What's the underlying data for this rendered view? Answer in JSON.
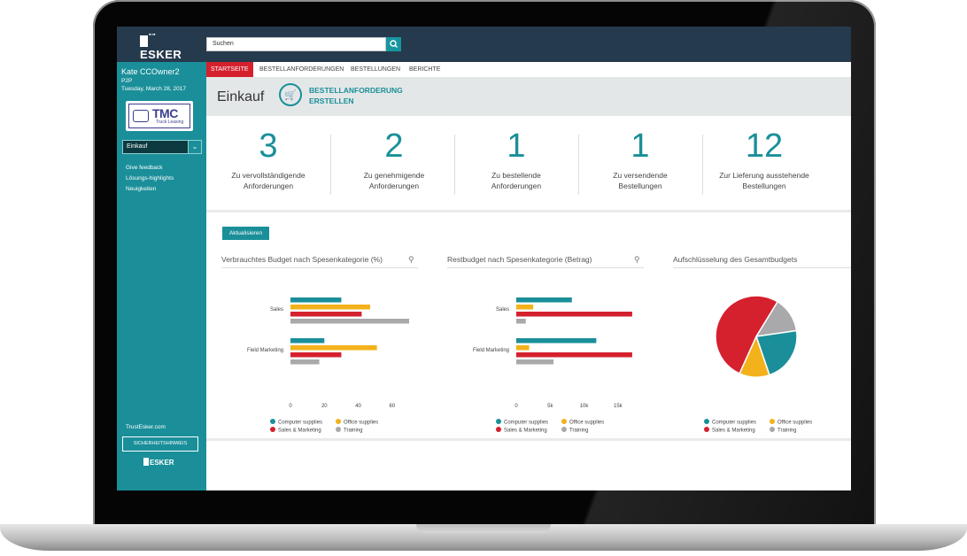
{
  "app": {
    "logo": "ESKER",
    "search_placeholder": "Suchen"
  },
  "user": {
    "name": "Kate CCOwner2",
    "role": "P2P",
    "date": "Tuesday, March 28, 2017"
  },
  "company_logo": {
    "name": "TMC",
    "sub": "Truck Leasing"
  },
  "sidebar": {
    "select_value": "Einkauf",
    "links": [
      "Give feedback",
      "Lösungs-highlights",
      "Neuigkeiten"
    ],
    "trust": "TrustEsker.com",
    "security_button": "SICHERHEITSHINWEIS",
    "footer_logo": "ESKER"
  },
  "tabs": [
    {
      "label": "STARTSEITE",
      "active": true
    },
    {
      "label": "BESTELLANFORDERUNGEN",
      "active": false
    },
    {
      "label": "BESTELLUNGEN",
      "active": false
    },
    {
      "label": "BERICHTE",
      "active": false
    }
  ],
  "header": {
    "title": "Einkauf",
    "action_line1": "BESTELLANFORDERUNG",
    "action_line2": "ERSTELLEN"
  },
  "kpis": [
    {
      "value": "3",
      "label1": "Zu vervollständigende",
      "label2": "Anforderungen"
    },
    {
      "value": "2",
      "label1": "Zu genehmigende",
      "label2": "Anforderungen"
    },
    {
      "value": "1",
      "label1": "Zu bestellende",
      "label2": "Anforderungen"
    },
    {
      "value": "1",
      "label1": "Zu versendende",
      "label2": "Bestellungen"
    },
    {
      "value": "12",
      "label1": "Zur Lieferung ausstehende",
      "label2": "Bestellungen"
    }
  ],
  "refresh_button": "Aktualisieren",
  "colors": {
    "Computer supplies": "#1a8f99",
    "Office supplies": "#f3b21c",
    "Sales & Marketing": "#d5202e",
    "Training": "#a9a9ab"
  },
  "chart_data": [
    {
      "type": "bar",
      "orientation": "horizontal",
      "title": "Verbrauchtes Budget nach Spesenkategorie (%)",
      "categories": [
        "Sales",
        "Field Marketing"
      ],
      "series": [
        {
          "name": "Computer supplies",
          "values": [
            30,
            20
          ]
        },
        {
          "name": "Office supplies",
          "values": [
            47,
            51
          ]
        },
        {
          "name": "Sales & Marketing",
          "values": [
            42,
            30
          ]
        },
        {
          "name": "Training",
          "values": [
            70,
            17
          ]
        }
      ],
      "xlim": [
        0,
        70
      ],
      "xticks": [
        "0",
        "20",
        "40",
        "60"
      ],
      "xtick_values": [
        0,
        20,
        40,
        60
      ],
      "legend": "bottom"
    },
    {
      "type": "bar",
      "orientation": "horizontal",
      "title": "Restbudget nach Spesenkategorie (Betrag)",
      "categories": [
        "Sales",
        "Field Marketing"
      ],
      "series": [
        {
          "name": "Computer supplies",
          "values": [
            8200,
            11800
          ]
        },
        {
          "name": "Office supplies",
          "values": [
            2500,
            1900
          ]
        },
        {
          "name": "Sales & Marketing",
          "values": [
            17100,
            17100
          ]
        },
        {
          "name": "Training",
          "values": [
            1400,
            5500
          ]
        }
      ],
      "xlim": [
        0,
        17500
      ],
      "xticks": [
        "0",
        "5k",
        "10k",
        "15k"
      ],
      "xtick_values": [
        0,
        5000,
        10000,
        15000
      ],
      "legend": "bottom"
    },
    {
      "type": "pie",
      "title": "Aufschlüsselung des Gesamtbudgets",
      "slices": [
        {
          "name": "Computer supplies",
          "value": 22
        },
        {
          "name": "Office supplies",
          "value": 12
        },
        {
          "name": "Sales & Marketing",
          "value": 52
        },
        {
          "name": "Training",
          "value": 14
        }
      ],
      "legend": "bottom"
    }
  ]
}
